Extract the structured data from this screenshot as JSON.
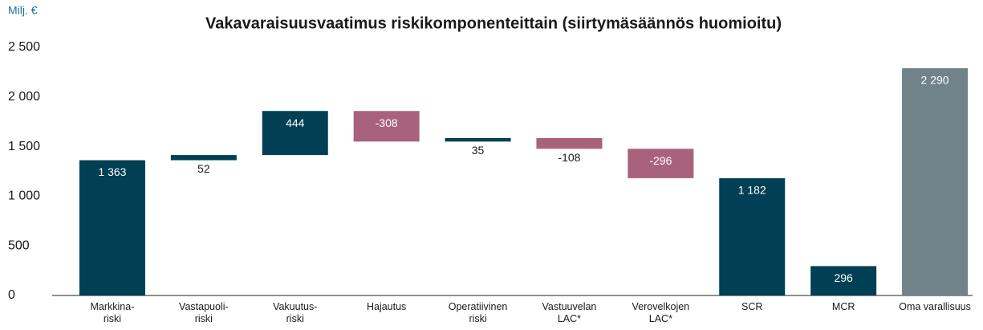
{
  "chart_data": {
    "type": "waterfall",
    "title": "Vakavaraisuusvaatimus riskikomponenteittain (siirtymäsäännös huomioitu)",
    "y_label": "Milj. €",
    "categories": [
      "Markkina-\nriski",
      "Vastapuoli-\nriski",
      "Vakuutus-\nriski",
      "Hajautus",
      "Operatiivinen\nriski",
      "Vastuuvelan\nLAC*",
      "Verovelkojen\nLAC*",
      "SCR",
      "MCR",
      "Oma varallisuus"
    ],
    "measure": [
      "absolute",
      "relative",
      "relative",
      "relative",
      "relative",
      "relative",
      "relative",
      "absolute",
      "absolute",
      "absolute"
    ],
    "values": [
      1363,
      52,
      444,
      -308,
      35,
      -108,
      -296,
      1182,
      296,
      2290
    ],
    "value_labels": [
      "1 363",
      "52",
      "444",
      "-308",
      "35",
      "-108",
      "-296",
      "1 182",
      "296",
      "2 290"
    ],
    "colors": [
      "#003f54",
      "#003f54",
      "#003f54",
      "#a9627c",
      "#003f54",
      "#a9627c",
      "#a9627c",
      "#003f54",
      "#003f54",
      "#6f8389"
    ],
    "ylim": [
      0,
      2500
    ],
    "yticks": [
      0,
      500,
      {
        "value": 1000,
        "label": "1 000"
      },
      {
        "value": 1500,
        "label": "1 500"
      },
      {
        "value": 2000,
        "label": "2 000"
      },
      {
        "value": 2500,
        "label": "2 500"
      }
    ],
    "grid": false
  }
}
